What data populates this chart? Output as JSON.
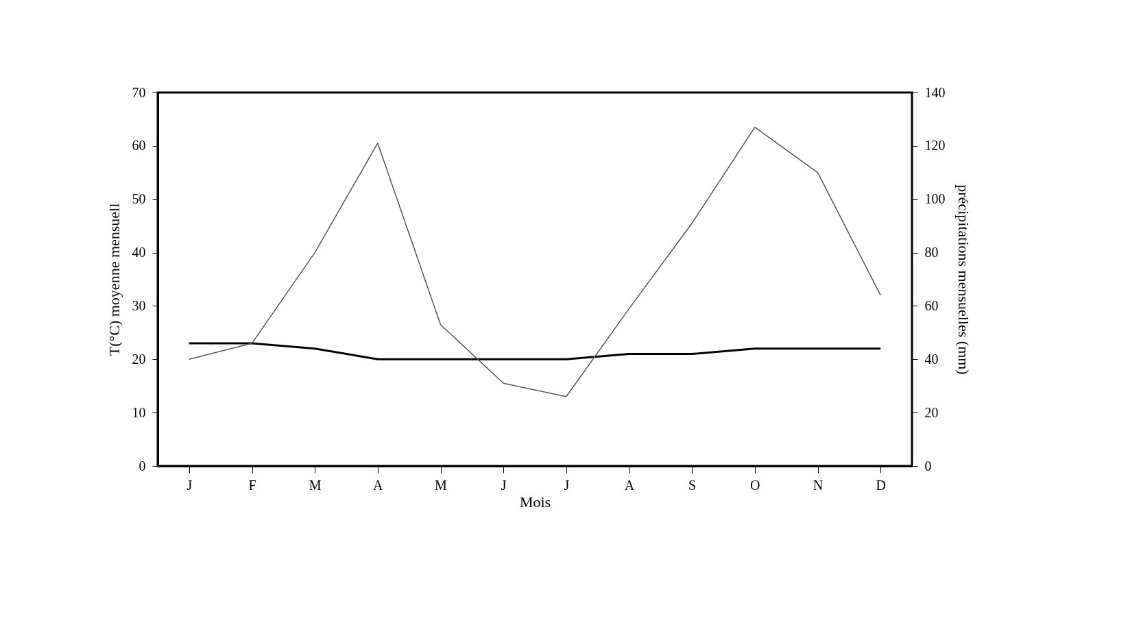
{
  "chart_data": {
    "type": "line",
    "xlabel": "Mois",
    "ylabel": "T(°C) moyenne mensuell",
    "y2label": "précipitations mensuelles (mm)",
    "categories": [
      "J",
      "F",
      "M",
      "A",
      "M",
      "J",
      "J",
      "A",
      "S",
      "O",
      "N",
      "D"
    ],
    "series": [
      {
        "color": "#000000",
        "values": [
          23,
          23,
          22,
          20,
          20,
          20,
          20,
          21,
          21,
          22,
          22,
          22
        ]
      },
      {
        "color": "#555555",
        "axis": "y2",
        "values": [
          40,
          46,
          80,
          121,
          53,
          31,
          26,
          59,
          91,
          127,
          110,
          64
        ]
      }
    ],
    "ylim": [
      0,
      70
    ],
    "yticks": [
      0,
      10,
      20,
      30,
      40,
      50,
      60,
      70
    ],
    "y2lim": [
      0,
      140
    ],
    "y2ticks": [
      0,
      20,
      40,
      60,
      80,
      100,
      120,
      140
    ],
    "grid": false,
    "marker": "none",
    "line_style": "solid"
  }
}
